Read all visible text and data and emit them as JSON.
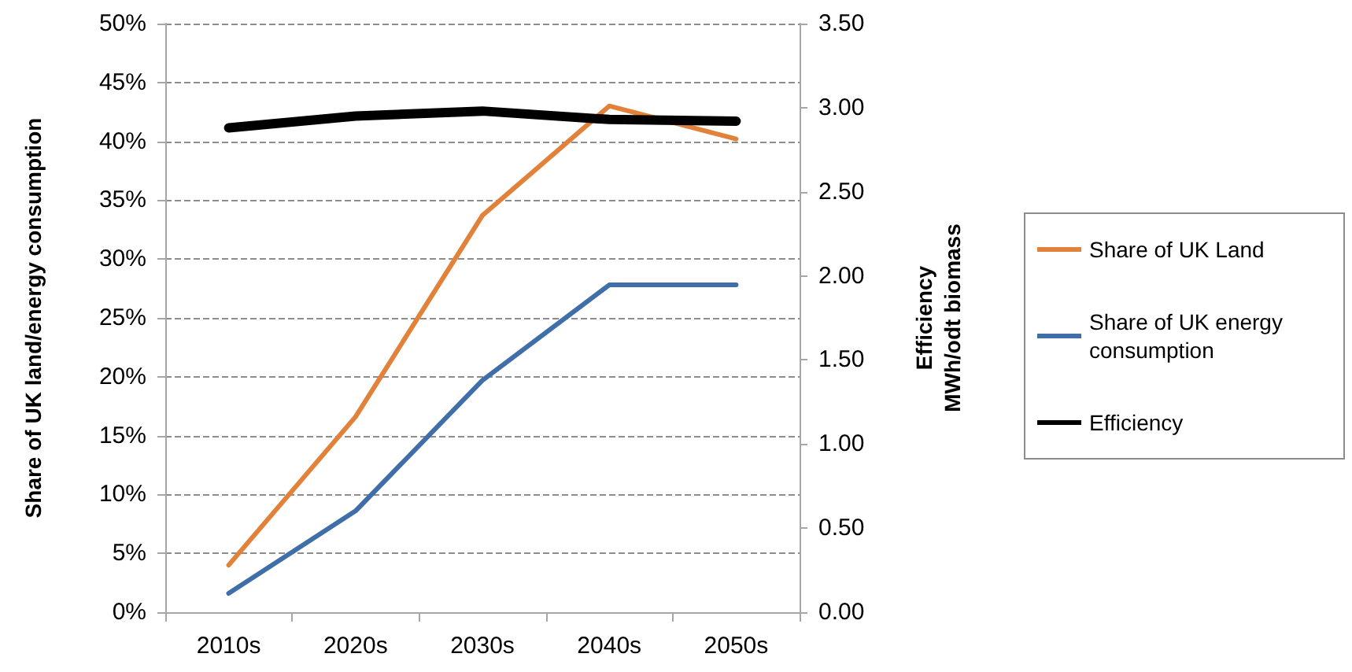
{
  "chart_data": {
    "type": "line",
    "categories": [
      "2010s",
      "2020s",
      "2030s",
      "2040s",
      "2050s"
    ],
    "series": [
      {
        "name": "Share of UK Land",
        "color": "#e2823a",
        "values": [
          4,
          16.6,
          33.7,
          43,
          40.2
        ]
      },
      {
        "name": "Share of UK energy consumption",
        "color": "#3f6ea8",
        "values": [
          1.6,
          8.6,
          19.7,
          27.8,
          27.8
        ]
      },
      {
        "name": "Efficiency",
        "color": "#000000",
        "axis": "y2",
        "values": [
          2.88,
          2.95,
          2.98,
          2.93,
          2.92
        ]
      }
    ],
    "ylabel": "Share of UK land/energy consumption",
    "y2label": "Efficiency\nMWh/odt biomass",
    "ylim": [
      0,
      50
    ],
    "yticks": [
      {
        "value": 0,
        "label": "0%"
      },
      {
        "value": 5,
        "label": "5%"
      },
      {
        "value": 10,
        "label": "10%"
      },
      {
        "value": 15,
        "label": "15%"
      },
      {
        "value": 20,
        "label": "20%"
      },
      {
        "value": 25,
        "label": "25%"
      },
      {
        "value": 30,
        "label": "30%"
      },
      {
        "value": 35,
        "label": "35%"
      },
      {
        "value": 40,
        "label": "40%"
      },
      {
        "value": 45,
        "label": "45%"
      },
      {
        "value": 50,
        "label": "50%"
      }
    ],
    "y2lim": [
      0,
      3.5
    ],
    "y2ticks": [
      {
        "value": 0,
        "label": "0.00"
      },
      {
        "value": 0.5,
        "label": "0.50"
      },
      {
        "value": 1,
        "label": "1.00"
      },
      {
        "value": 1.5,
        "label": "1.50"
      },
      {
        "value": 2,
        "label": "2.00"
      },
      {
        "value": 2.5,
        "label": "2.50"
      },
      {
        "value": 3,
        "label": "3.00"
      },
      {
        "value": 3.5,
        "label": "3.50"
      }
    ],
    "grid": "y",
    "legend": "right",
    "marker": "none",
    "line_style": "solid"
  }
}
